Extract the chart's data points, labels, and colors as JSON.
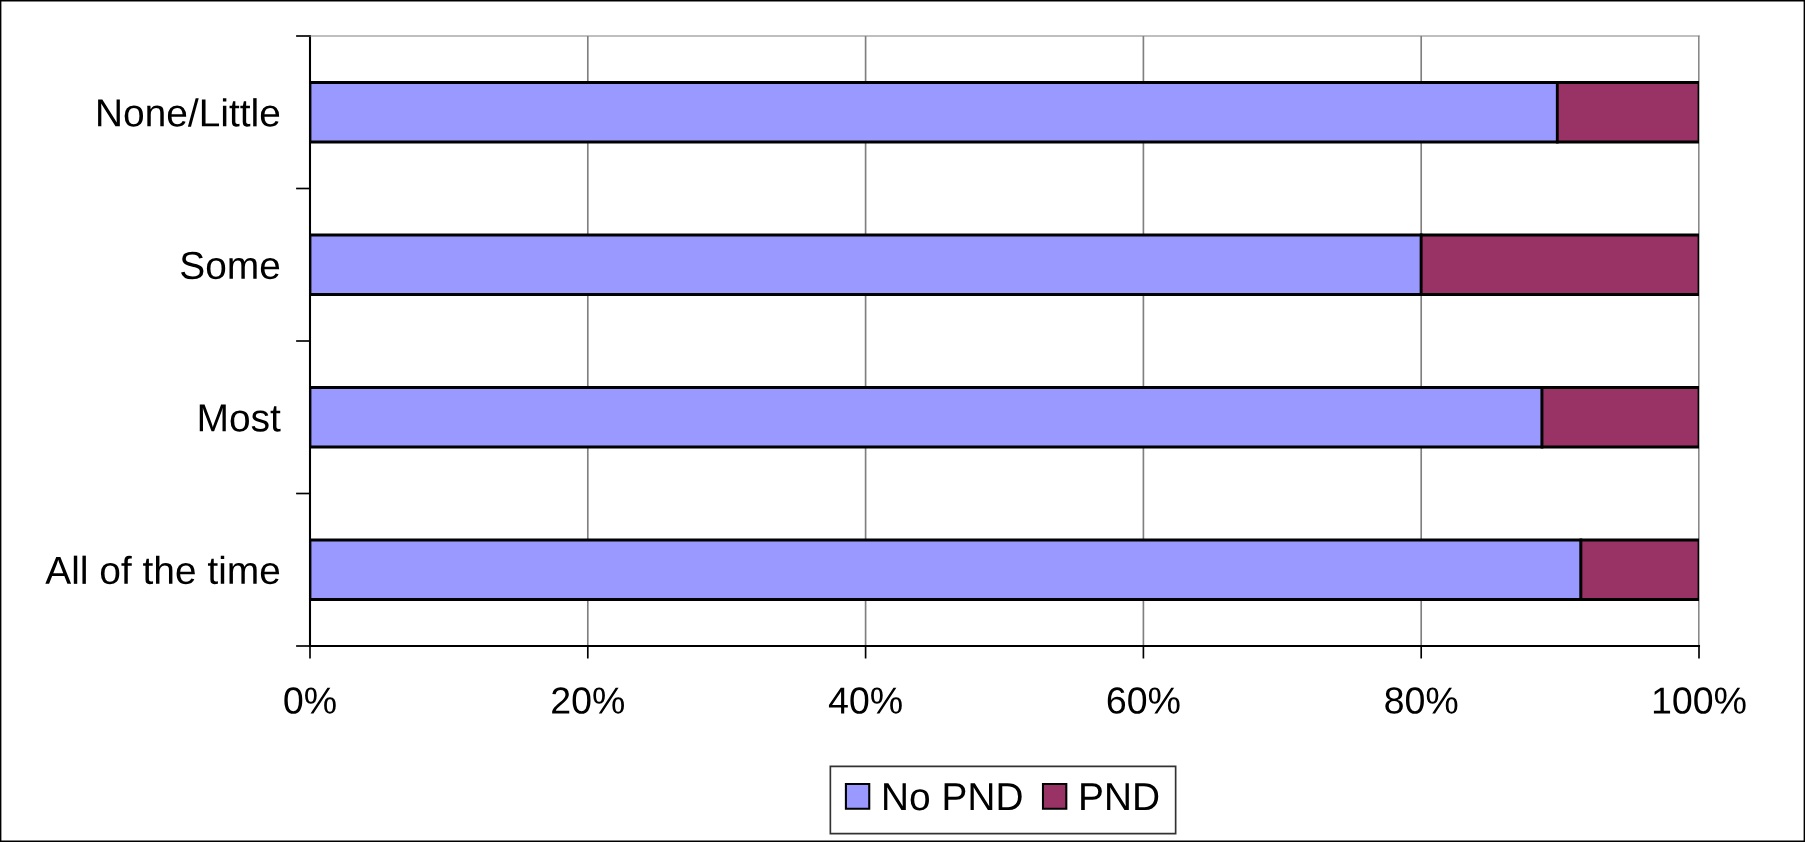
{
  "chart_data": {
    "type": "bar",
    "orientation": "horizontal",
    "stacked": true,
    "categories": [
      "None/Little",
      "Some",
      "Most",
      "All of the time"
    ],
    "series": [
      {
        "name": "No PND",
        "color": "#9999ff",
        "values": [
          89.8,
          80,
          88.7,
          91.5
        ]
      },
      {
        "name": "PND",
        "color": "#993366",
        "values": [
          10.2,
          20,
          11.3,
          8.5
        ]
      }
    ],
    "xlim": [
      0,
      100
    ],
    "xticks": [
      {
        "value": 0,
        "label": "0%"
      },
      {
        "value": 20,
        "label": "20%"
      },
      {
        "value": 40,
        "label": "40%"
      },
      {
        "value": 60,
        "label": "60%"
      },
      {
        "value": 80,
        "label": "80%"
      },
      {
        "value": 100,
        "label": "100%"
      }
    ],
    "grid": "x",
    "legend": "bottom"
  }
}
